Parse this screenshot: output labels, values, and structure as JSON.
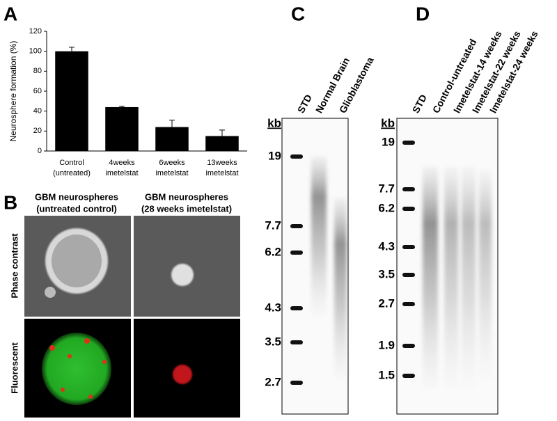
{
  "chart_data": {
    "type": "bar",
    "panel": "A",
    "y_label": "Neurosphere formation (%)",
    "categories": [
      [
        "Control",
        "(untreated)"
      ],
      [
        "4weeks",
        "imetelstat"
      ],
      [
        "6weeks",
        "imetelstat"
      ],
      [
        "13weeks",
        "imetelstat"
      ]
    ],
    "values": [
      100,
      44,
      24,
      15
    ],
    "errors": [
      4,
      1,
      7,
      6
    ],
    "color": "#000000",
    "ylim": [
      0,
      120
    ],
    "yticks": [
      0,
      20,
      40,
      60,
      80,
      100,
      120
    ]
  },
  "panel_b": {
    "panel": "B",
    "columns": [
      [
        "GBM neurospheres",
        "(untreated control)"
      ],
      [
        "GBM neurospheres",
        "(28 weeks imetelstat)"
      ]
    ],
    "rows": [
      "Phase contrast",
      "Fluorescent"
    ]
  },
  "panel_c": {
    "panel": "C",
    "unit": "kb",
    "lanes": [
      "STD",
      "Normal Brain",
      "Glioblastoma"
    ],
    "markers": [
      "19",
      "7.7",
      "6.2",
      "4.3",
      "3.5",
      "2.7"
    ]
  },
  "panel_d": {
    "panel": "D",
    "unit": "kb",
    "lanes": [
      "STD",
      "Control-untreated",
      "Imetelstat-14 weeks",
      "Imetelstat-22 weeks",
      "Imetelstat-24 weeks"
    ],
    "markers": [
      "19",
      "7.7",
      "6.2",
      "4.3",
      "3.5",
      "2.7",
      "1.9",
      "1.5"
    ]
  }
}
